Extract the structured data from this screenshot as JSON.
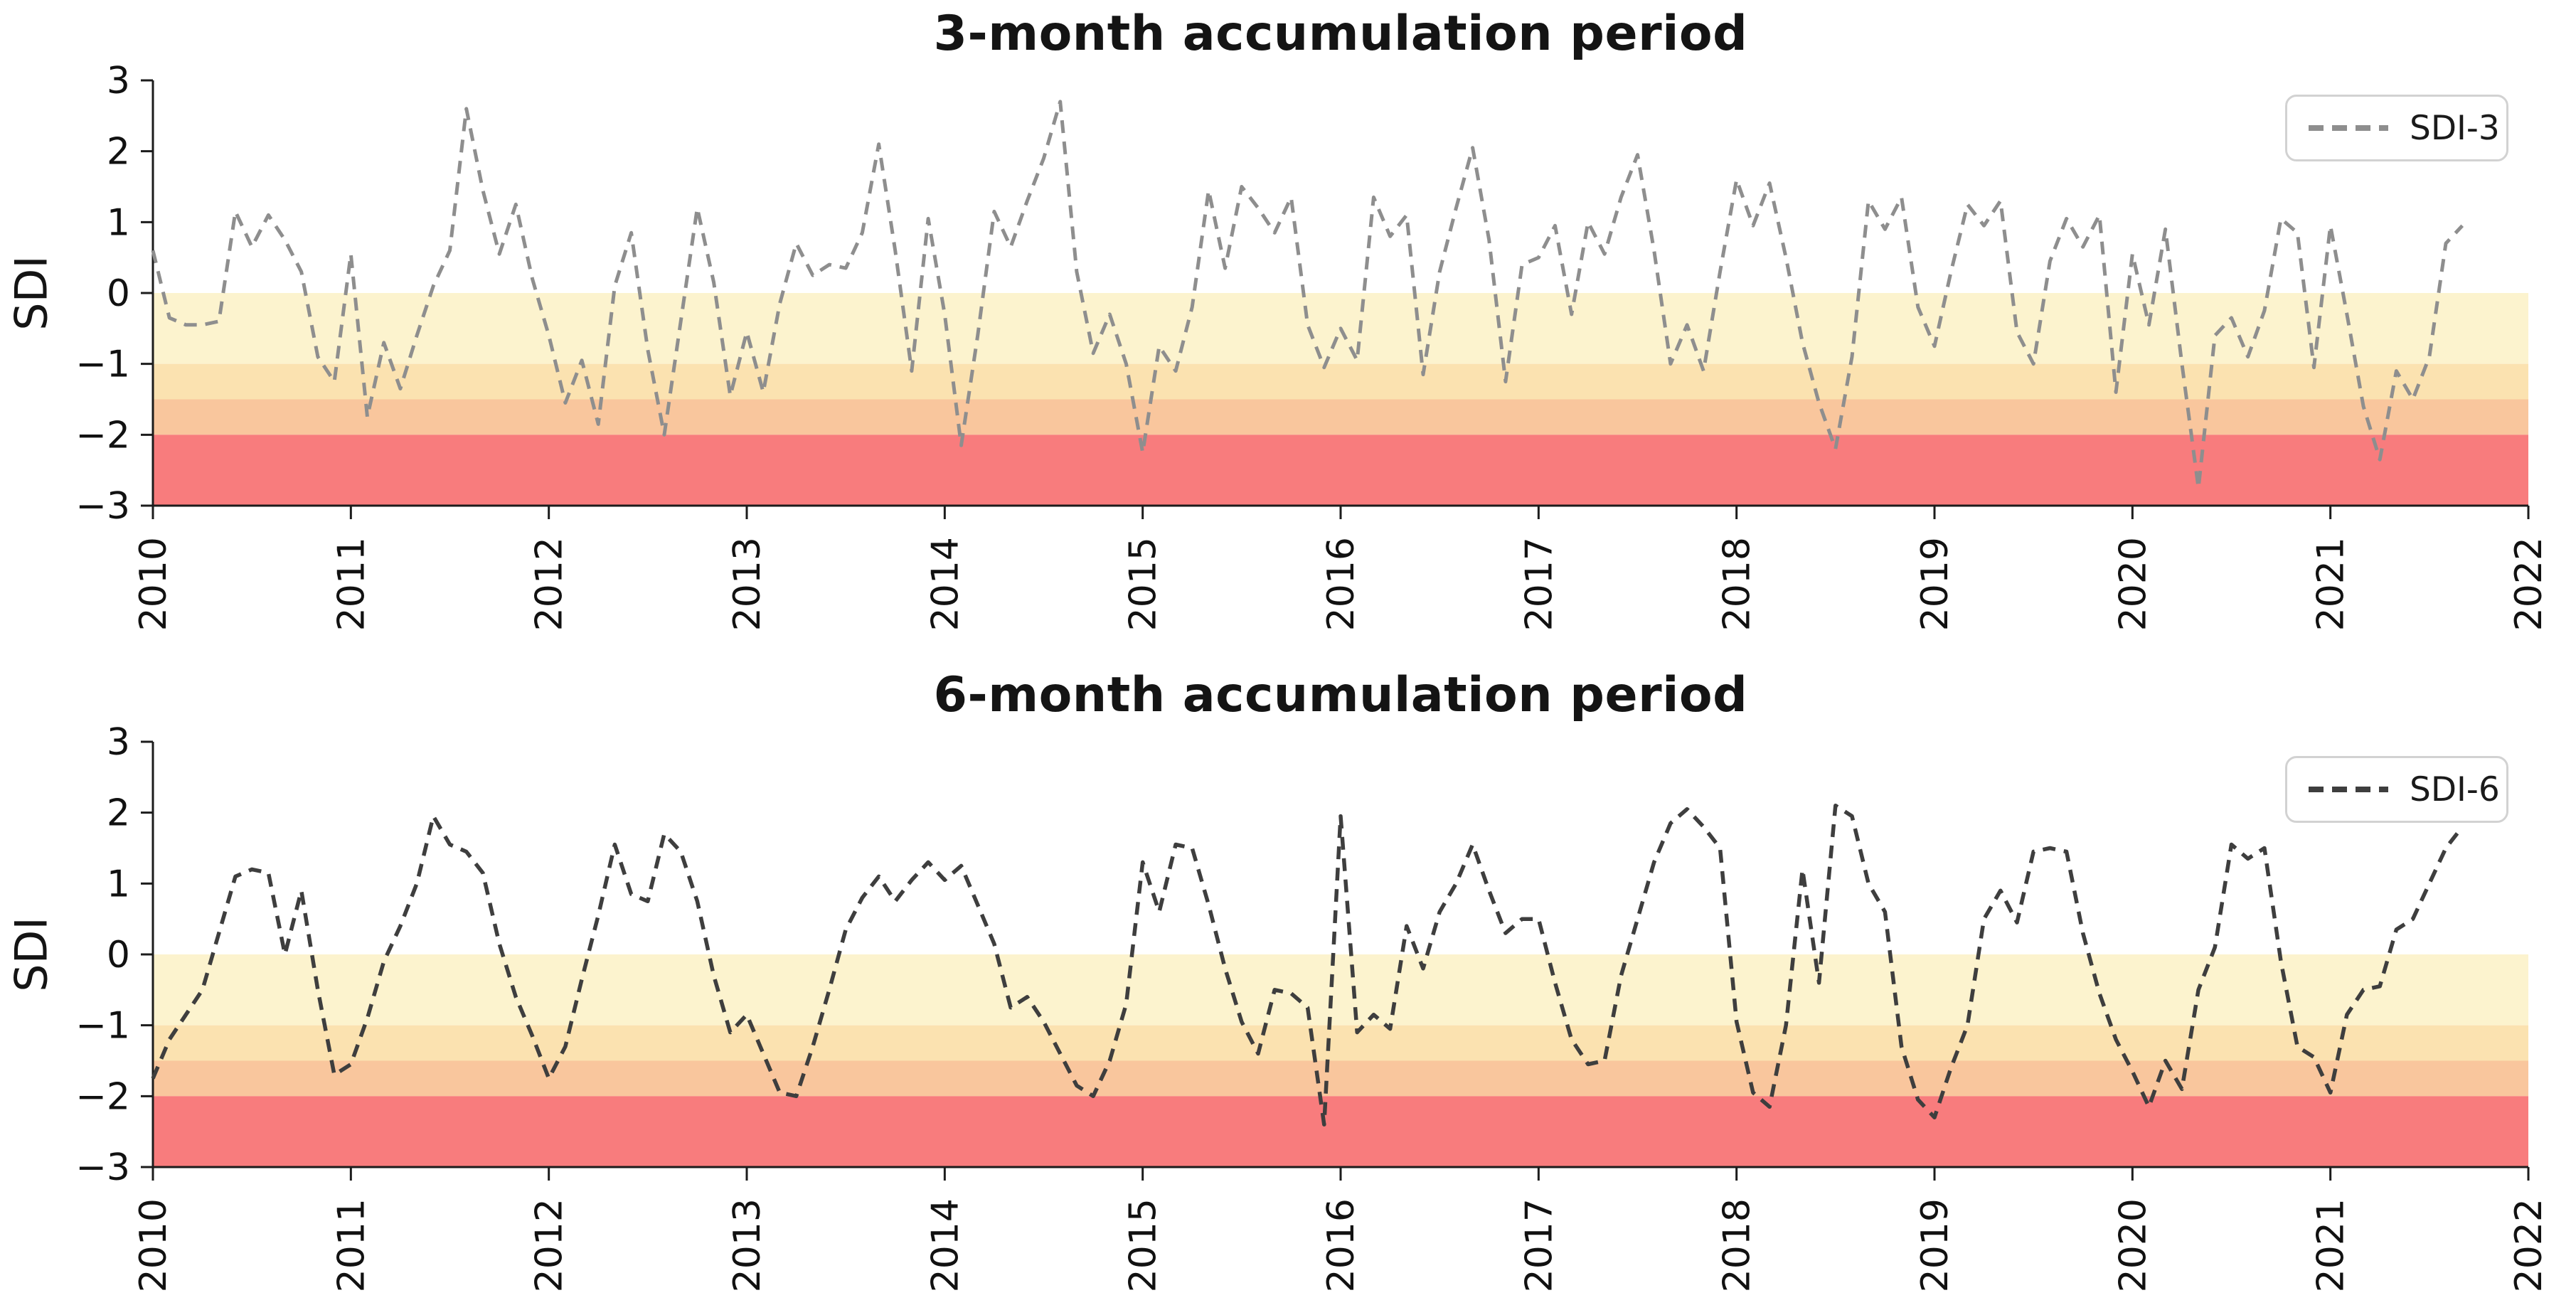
{
  "figure": {
    "background_color": "#ffffff",
    "axis_color": "#1c1c1c",
    "tick_label_color": "#111111"
  },
  "chart_data": [
    {
      "type": "line",
      "title": "3-month accumulation period",
      "ylabel": "SDI",
      "xlabel": "",
      "legend": {
        "label": "SDI-3",
        "position": "upper-right",
        "line_style": "dashed"
      },
      "line": {
        "color": "#8e8e8e",
        "style": "dashed",
        "width": 5
      },
      "xlim": [
        2010,
        2022
      ],
      "ylim": [
        -3,
        3
      ],
      "grid": false,
      "x_tick_labels": [
        "2010",
        "2011",
        "2012",
        "2013",
        "2014",
        "2015",
        "2016",
        "2017",
        "2018",
        "2019",
        "2020",
        "2021",
        "2022"
      ],
      "x_tick_rotation_deg": 90,
      "y_tick_labels": [
        "3",
        "2",
        "1",
        "0",
        "−1",
        "−2",
        "−3"
      ],
      "y_tick_values": [
        3,
        2,
        1,
        0,
        -1,
        -2,
        -3
      ],
      "background_bands": [
        {
          "sdi_from": 0,
          "sdi_to": -1,
          "color": "#FCF3CE"
        },
        {
          "sdi_from": -1,
          "sdi_to": -1.5,
          "color": "#FBE2B0"
        },
        {
          "sdi_from": -1.5,
          "sdi_to": -2,
          "color": "#F9C69D"
        },
        {
          "sdi_from": -2,
          "sdi_to": -3,
          "color": "#F87C7D"
        }
      ],
      "series_x_start_year": 2010.0,
      "series_x_step_years": 0.0833333,
      "values": [
        0.6,
        -0.35,
        -0.45,
        -0.45,
        -0.4,
        1.15,
        0.65,
        1.1,
        0.75,
        0.3,
        -0.9,
        -1.25,
        0.55,
        -1.75,
        -0.7,
        -1.35,
        -0.6,
        0.1,
        0.6,
        2.6,
        1.45,
        0.55,
        1.25,
        0.2,
        -0.6,
        -1.55,
        -0.95,
        -1.85,
        0.1,
        0.85,
        -0.8,
        -2.0,
        -0.4,
        1.2,
        0.15,
        -1.45,
        -0.55,
        -1.4,
        -0.15,
        0.7,
        0.25,
        0.4,
        0.35,
        0.85,
        2.1,
        0.6,
        -1.1,
        1.05,
        -0.3,
        -2.15,
        -0.6,
        1.15,
        0.65,
        1.3,
        1.9,
        2.7,
        0.3,
        -0.85,
        -0.3,
        -1.0,
        -2.25,
        -0.75,
        -1.1,
        -0.2,
        1.45,
        0.35,
        1.5,
        1.2,
        0.85,
        1.35,
        -0.45,
        -1.05,
        -0.5,
        -0.95,
        1.35,
        0.8,
        1.1,
        -1.15,
        0.3,
        1.2,
        2.05,
        0.75,
        -1.25,
        0.4,
        0.5,
        0.95,
        -0.3,
        1.0,
        0.55,
        1.35,
        1.95,
        0.6,
        -1.0,
        -0.45,
        -1.1,
        0.3,
        1.6,
        0.95,
        1.55,
        0.5,
        -0.7,
        -1.55,
        -2.2,
        -0.9,
        1.3,
        0.9,
        1.35,
        -0.2,
        -0.75,
        0.3,
        1.25,
        0.95,
        1.3,
        -0.55,
        -1.0,
        0.45,
        1.05,
        0.65,
        1.1,
        -1.4,
        0.55,
        -0.45,
        0.9,
        -1.0,
        -2.75,
        -0.6,
        -0.35,
        -0.9,
        -0.25,
        1.05,
        0.85,
        -1.05,
        0.95,
        -0.3,
        -1.6,
        -2.35,
        -1.1,
        -1.5,
        -0.9,
        0.7,
        0.95
      ]
    },
    {
      "type": "line",
      "title": "6-month accumulation period",
      "ylabel": "SDI",
      "xlabel": "",
      "legend": {
        "label": "SDI-6",
        "position": "upper-right",
        "line_style": "dashed"
      },
      "line": {
        "color": "#3e3e3e",
        "style": "dashed",
        "width": 5.5
      },
      "xlim": [
        2010,
        2022
      ],
      "ylim": [
        -3,
        3
      ],
      "grid": false,
      "x_tick_labels": [
        "2010",
        "2011",
        "2012",
        "2013",
        "2014",
        "2015",
        "2016",
        "2017",
        "2018",
        "2019",
        "2020",
        "2021",
        "2022"
      ],
      "x_tick_rotation_deg": 90,
      "y_tick_labels": [
        "3",
        "2",
        "1",
        "0",
        "−1",
        "−2",
        "−3"
      ],
      "y_tick_values": [
        3,
        2,
        1,
        0,
        -1,
        -2,
        -3
      ],
      "background_bands": [
        {
          "sdi_from": 0,
          "sdi_to": -1,
          "color": "#FCF3CE"
        },
        {
          "sdi_from": -1,
          "sdi_to": -1.5,
          "color": "#FBE2B0"
        },
        {
          "sdi_from": -1.5,
          "sdi_to": -2,
          "color": "#F9C69D"
        },
        {
          "sdi_from": -2,
          "sdi_to": -3,
          "color": "#F87C7D"
        }
      ],
      "series_x_start_year": 2010.0,
      "series_x_step_years": 0.0833333,
      "values": [
        -1.75,
        -1.2,
        -0.85,
        -0.5,
        0.3,
        1.1,
        1.2,
        1.15,
        0.0,
        0.9,
        -0.5,
        -1.7,
        -1.55,
        -0.9,
        -0.1,
        0.4,
        1.0,
        1.95,
        1.55,
        1.45,
        1.15,
        0.15,
        -0.6,
        -1.15,
        -1.75,
        -1.3,
        -0.35,
        0.55,
        1.55,
        0.85,
        0.75,
        1.7,
        1.45,
        0.75,
        -0.3,
        -1.1,
        -0.85,
        -1.4,
        -1.95,
        -2.0,
        -1.3,
        -0.5,
        0.35,
        0.8,
        1.1,
        0.75,
        1.05,
        1.3,
        1.05,
        1.25,
        0.7,
        0.15,
        -0.75,
        -0.6,
        -0.95,
        -1.4,
        -1.85,
        -2.0,
        -1.5,
        -0.7,
        1.3,
        0.6,
        1.55,
        1.5,
        0.7,
        -0.2,
        -0.95,
        -1.4,
        -0.5,
        -0.55,
        -0.75,
        -2.4,
        1.95,
        -1.1,
        -0.85,
        -1.05,
        0.4,
        -0.2,
        0.6,
        1.0,
        1.55,
        0.9,
        0.3,
        0.5,
        0.5,
        -0.4,
        -1.2,
        -1.55,
        -1.5,
        -0.3,
        0.5,
        1.3,
        1.85,
        2.05,
        1.8,
        1.5,
        -0.95,
        -1.95,
        -2.15,
        -1.0,
        1.2,
        -0.4,
        2.1,
        1.95,
        1.0,
        0.6,
        -1.3,
        -2.05,
        -2.3,
        -1.6,
        -1.0,
        0.5,
        0.9,
        0.45,
        1.45,
        1.5,
        1.45,
        0.3,
        -0.55,
        -1.2,
        -1.65,
        -2.15,
        -1.5,
        -1.9,
        -0.5,
        0.1,
        1.55,
        1.35,
        1.5,
        -0.1,
        -1.3,
        -1.45,
        -1.95,
        -0.85,
        -0.5,
        -0.45,
        0.35,
        0.5,
        1.0,
        1.5,
        1.8
      ]
    }
  ]
}
